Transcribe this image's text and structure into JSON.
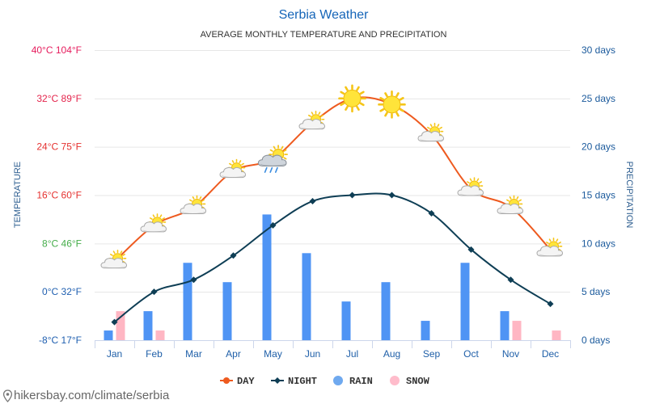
{
  "footer": {
    "text": "hikersbay.com/climate/serbia"
  },
  "colors": {
    "title": "#1565b8",
    "day": "#ee5a1f",
    "night": "#0e3e55",
    "rain": "#4f94f4",
    "rain_legend": "#6fa9ef",
    "snow": "#ffb6c3",
    "snow_legend": "#ffbccb",
    "gridline": "#e6e6e6",
    "axis_line": "#ccd6eb",
    "footer_icon": "#777777"
  },
  "chart_data": {
    "type": "line",
    "title": "Serbia Weather",
    "subtitle": "AVERAGE MONTHLY TEMPERATURE AND PRECIPITATION",
    "categories": [
      "Jan",
      "Feb",
      "Mar",
      "Apr",
      "May",
      "Jun",
      "Jul",
      "Aug",
      "Sep",
      "Oct",
      "Nov",
      "Dec"
    ],
    "y_left": {
      "label": "TEMPERATURE",
      "range": [
        -8,
        40
      ],
      "ticks": [
        40,
        32,
        24,
        16,
        8,
        0,
        -8
      ],
      "tick_labels": [
        "40°C 104°F",
        "32°C 89°F",
        "24°C 75°F",
        "16°C 60°F",
        "8°C 46°F",
        "0°C 32°F",
        "-8°C 17°F"
      ],
      "tick_colors": [
        "#e61c5d",
        "#e4244c",
        "#e5312f",
        "#e5312f",
        "#45ad4a",
        "#1f5fb0",
        "#1f5fb0"
      ]
    },
    "y_right": {
      "label": "PRECIPITATION",
      "range": [
        0,
        30
      ],
      "ticks": [
        30,
        25,
        20,
        15,
        10,
        5,
        0
      ],
      "tick_labels": [
        "30 days",
        "25 days",
        "20 days",
        "15 days",
        "10 days",
        "5 days",
        "0 days"
      ]
    },
    "series": [
      {
        "name": "DAY",
        "type": "line",
        "values": [
          5,
          11,
          14,
          20,
          22,
          28,
          32,
          31,
          26,
          17,
          14,
          7
        ],
        "icons": [
          "partly-cloudy-icon",
          "partly-cloudy-icon",
          "partly-cloudy-icon",
          "partly-cloudy-icon",
          "rain-cloud-icon",
          "partly-cloudy-icon",
          "sun-icon",
          "sun-icon",
          "partly-cloudy-icon",
          "partly-cloudy-icon",
          "partly-cloudy-icon",
          "partly-cloudy-icon"
        ]
      },
      {
        "name": "NIGHT",
        "type": "line",
        "values": [
          -5,
          0,
          2,
          6,
          11,
          15,
          16,
          16,
          13,
          7,
          2,
          -2
        ]
      },
      {
        "name": "RAIN",
        "type": "bar",
        "values": [
          1,
          3,
          8,
          6,
          13,
          9,
          4,
          6,
          2,
          8,
          3,
          0
        ]
      },
      {
        "name": "SNOW",
        "type": "bar",
        "values": [
          3,
          1,
          0,
          0,
          0,
          0,
          0,
          0,
          0,
          0,
          2,
          1
        ]
      }
    ],
    "legend_position": "bottom"
  }
}
